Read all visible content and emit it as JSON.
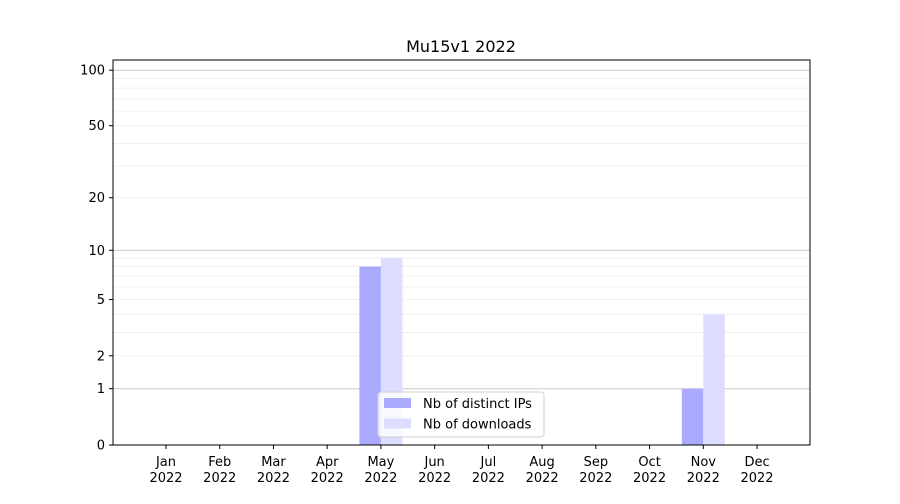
{
  "chart_data": {
    "type": "bar",
    "title": "Mu15v1 2022",
    "xlabel": "",
    "ylabel": "",
    "yscale": "log(1+y)",
    "ylim": [
      0,
      113.5
    ],
    "yticks": [
      0,
      1,
      2,
      5,
      10,
      20,
      50,
      100
    ],
    "grid": true,
    "legend_placement": "lower-center",
    "categories": [
      "Jan\n2022",
      "Feb\n2022",
      "Mar\n2022",
      "Apr\n2022",
      "May\n2022",
      "Jun\n2022",
      "Jul\n2022",
      "Aug\n2022",
      "Sep\n2022",
      "Oct\n2022",
      "Nov\n2022",
      "Dec\n2022"
    ],
    "series": [
      {
        "name": "Nb of distinct IPs",
        "color": "#aaaaff",
        "values": [
          0,
          0,
          0,
          0,
          8,
          0,
          0,
          0,
          0,
          0,
          1,
          0
        ]
      },
      {
        "name": "Nb of downloads",
        "color": "#ddddff",
        "values": [
          0,
          0,
          0,
          0,
          9,
          0,
          0,
          0,
          0,
          0,
          4,
          0
        ]
      }
    ]
  }
}
